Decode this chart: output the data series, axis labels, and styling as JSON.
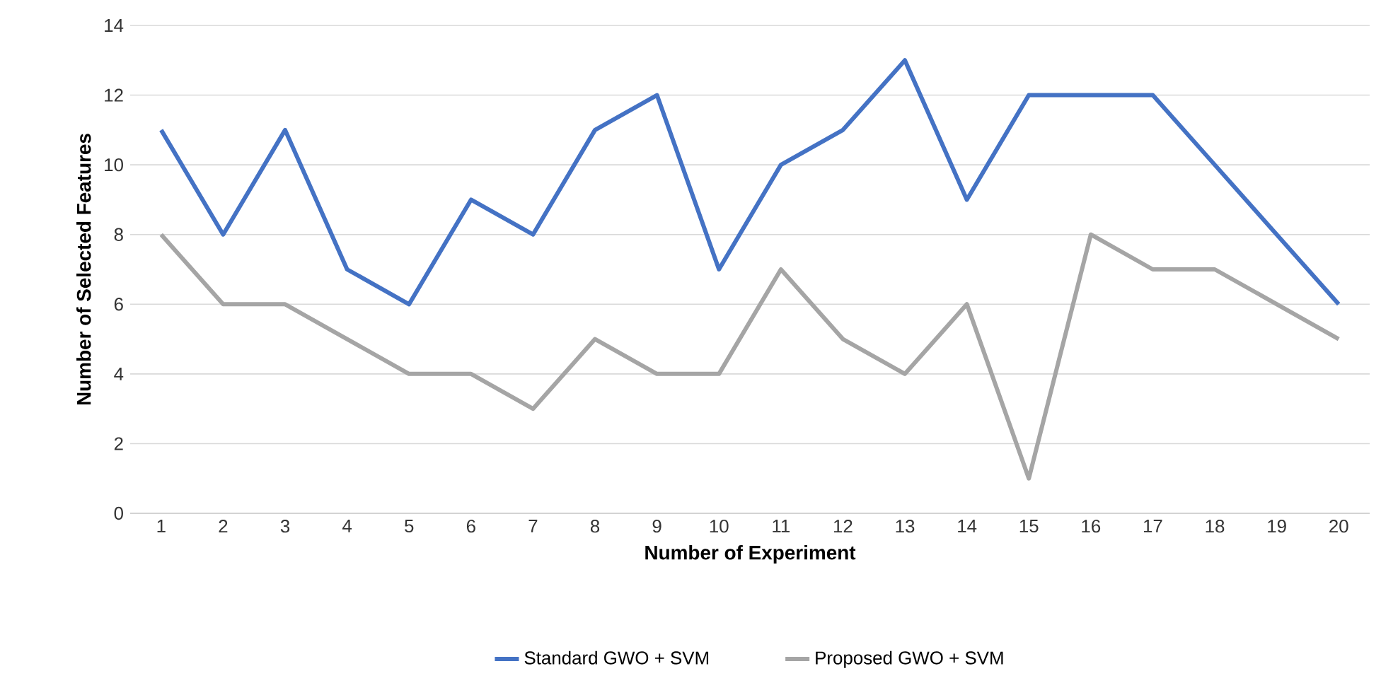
{
  "chart_data": {
    "type": "line",
    "xlabel": "Number of Experiment",
    "ylabel": "Number of Selected Features",
    "categories": [
      "1",
      "2",
      "3",
      "4",
      "5",
      "6",
      "7",
      "8",
      "9",
      "10",
      "11",
      "12",
      "13",
      "14",
      "15",
      "16",
      "17",
      "18",
      "19",
      "20"
    ],
    "series": [
      {
        "name": "Standard GWO + SVM",
        "color": "#4472c4",
        "values": [
          11,
          8,
          11,
          7,
          6,
          9,
          8,
          11,
          12,
          7,
          10,
          11,
          13,
          9,
          12,
          12,
          12,
          10,
          8,
          6
        ]
      },
      {
        "name": "Proposed GWO + SVM",
        "color": "#a5a5a5",
        "values": [
          8,
          6,
          6,
          5,
          4,
          4,
          3,
          5,
          4,
          4,
          7,
          5,
          4,
          6,
          1,
          8,
          7,
          7,
          6,
          5
        ]
      }
    ],
    "ylim": [
      0,
      14
    ],
    "yticks": [
      0,
      2,
      4,
      6,
      8,
      10,
      12,
      14
    ],
    "grid": "y",
    "legend": "bottom"
  }
}
